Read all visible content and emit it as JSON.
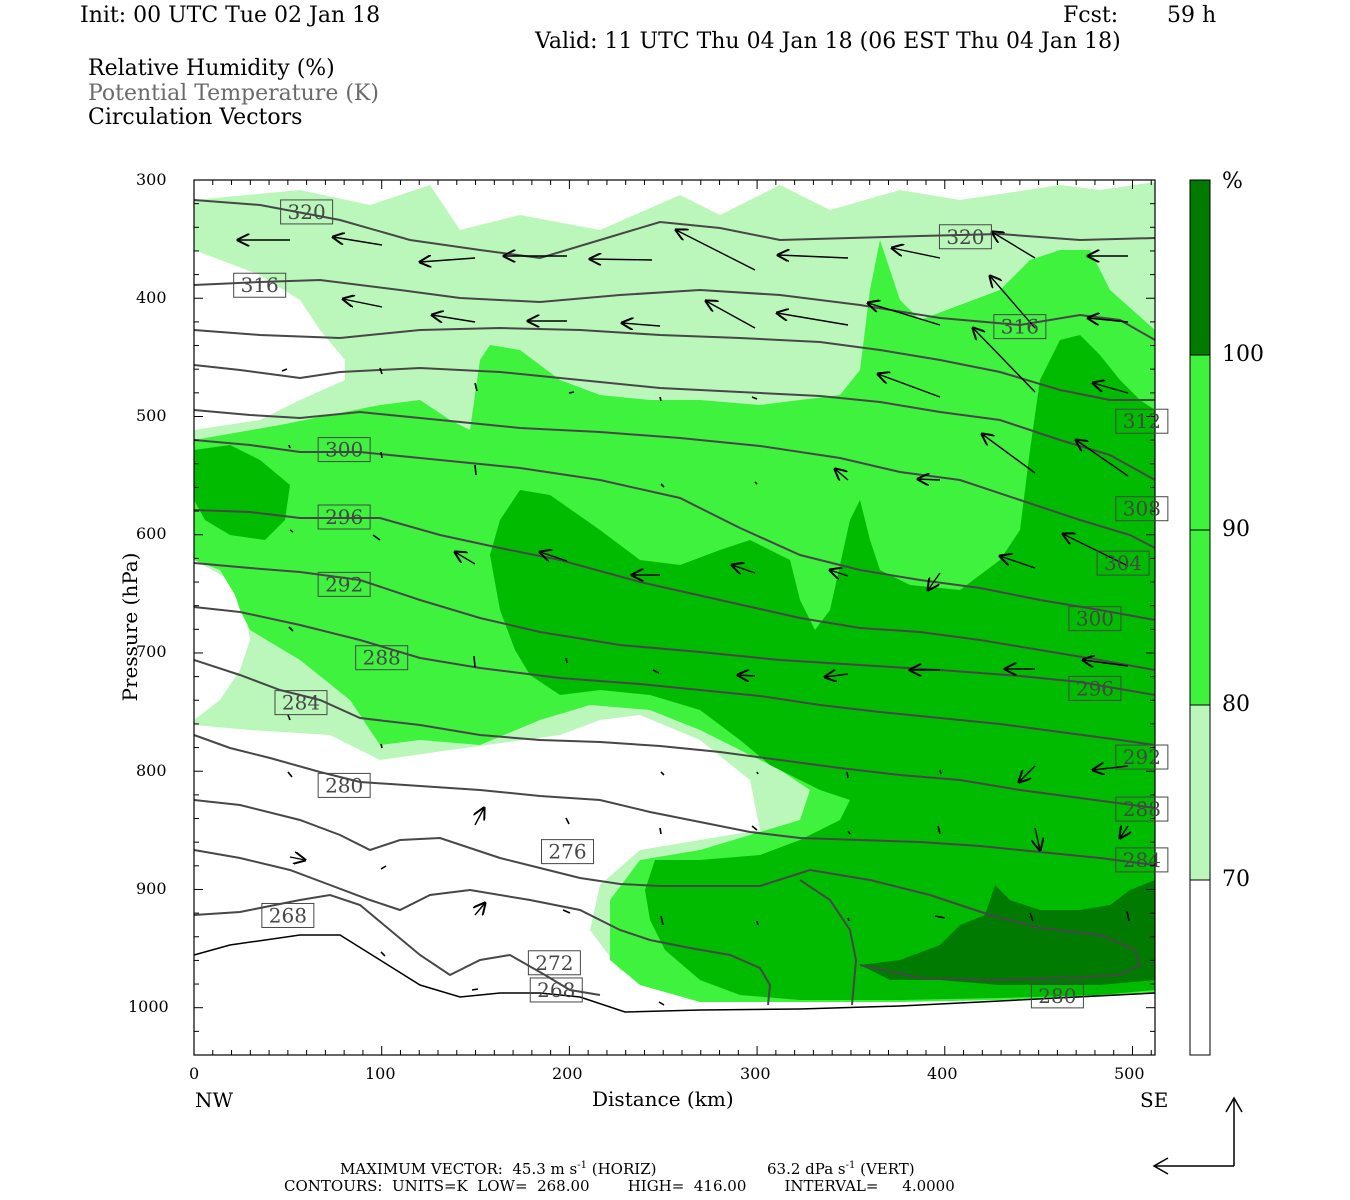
{
  "header": {
    "init": "Init: 00 UTC Tue 02 Jan 18",
    "fcst_label": "Fcst:",
    "fcst_value": "59 h",
    "valid": "Valid: 11 UTC Thu 04 Jan 18 (06 EST Thu 04 Jan 18)"
  },
  "legend": {
    "line1": "Relative Humidity (%)",
    "line2": "Potential Temperature (K)",
    "line3": "Circulation Vectors"
  },
  "axes": {
    "ylabel": "Pressure (hPa)",
    "xlabel": "Distance (km)",
    "left_end": "NW",
    "right_end": "SE"
  },
  "colorbar": {
    "unit": "%",
    "levels": [
      "70",
      "80",
      "90",
      "100"
    ],
    "colors": [
      "#ffffff",
      "#bbf7bb",
      "#3ef23e",
      "#00bb00",
      "#007a00"
    ]
  },
  "footer": {
    "max_vector": "MAXIMUM VECTOR:  45.3 m s",
    "horiz_unit": " (HORIZ)",
    "vert_value": "63.2 dPa s",
    "vert_unit": " (VERT)",
    "contours": "CONTOURS:  UNITS=K  LOW=  268.00        HIGH=  416.00        INTERVAL=     4.0000"
  },
  "colors": {
    "contour": "#474747",
    "rh_70": "#bbf7bb",
    "rh_80": "#3ef23e",
    "rh_90": "#00bb00",
    "rh_100": "#007a00"
  },
  "chart_data": {
    "type": "heatmap",
    "x_ticks": [
      0,
      100,
      200,
      300,
      400,
      500
    ],
    "y_ticks": [
      300,
      400,
      500,
      600,
      700,
      800,
      900,
      1000
    ],
    "xlim": [
      0,
      512
    ],
    "ylim": [
      1040,
      300
    ],
    "theta_contours": [
      {
        "label": "320",
        "x": 60,
        "p": 327
      },
      {
        "label": "316",
        "x": 35,
        "p": 389
      },
      {
        "label": "300",
        "x": 80,
        "p": 528
      },
      {
        "label": "296",
        "x": 80,
        "p": 585
      },
      {
        "label": "292",
        "x": 80,
        "p": 642
      },
      {
        "label": "288",
        "x": 100,
        "p": 704
      },
      {
        "label": "284",
        "x": 57,
        "p": 742
      },
      {
        "label": "280",
        "x": 80,
        "p": 812
      },
      {
        "label": "276",
        "x": 199,
        "p": 868
      },
      {
        "label": "268",
        "x": 50,
        "p": 922
      },
      {
        "label": "272",
        "x": 192,
        "p": 962
      },
      {
        "label": "268",
        "x": 193,
        "p": 985
      },
      {
        "label": "320",
        "x": 411,
        "p": 348
      },
      {
        "label": "316",
        "x": 440,
        "p": 424
      },
      {
        "label": "312",
        "x": 505,
        "p": 504
      },
      {
        "label": "308",
        "x": 505,
        "p": 578
      },
      {
        "label": "304",
        "x": 495,
        "p": 624
      },
      {
        "label": "300",
        "x": 480,
        "p": 671
      },
      {
        "label": "296",
        "x": 480,
        "p": 730
      },
      {
        "label": "292",
        "x": 505,
        "p": 788
      },
      {
        "label": "288",
        "x": 505,
        "p": 832
      },
      {
        "label": "284",
        "x": 505,
        "p": 875
      },
      {
        "label": "280",
        "x": 460,
        "p": 990
      }
    ]
  }
}
